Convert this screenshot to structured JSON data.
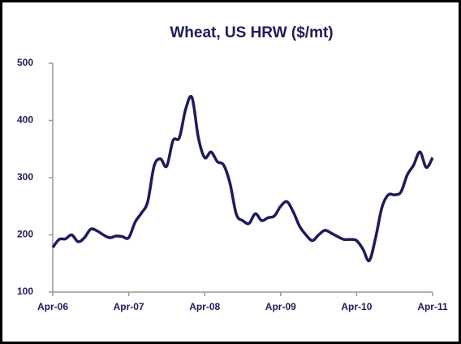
{
  "chart_data": {
    "type": "line",
    "title": "Wheat, US HRW ($/mt)",
    "x": [
      "2006-04",
      "2006-05",
      "2006-06",
      "2006-07",
      "2006-08",
      "2006-09",
      "2006-10",
      "2006-11",
      "2006-12",
      "2007-01",
      "2007-02",
      "2007-03",
      "2007-04",
      "2007-05",
      "2007-06",
      "2007-07",
      "2007-08",
      "2007-09",
      "2007-10",
      "2007-11",
      "2007-12",
      "2008-01",
      "2008-02",
      "2008-03",
      "2008-04",
      "2008-05",
      "2008-06",
      "2008-07",
      "2008-08",
      "2008-09",
      "2008-10",
      "2008-11",
      "2008-12",
      "2009-01",
      "2009-02",
      "2009-03",
      "2009-04",
      "2009-05",
      "2009-06",
      "2009-07",
      "2009-08",
      "2009-09",
      "2009-10",
      "2009-11",
      "2009-12",
      "2010-01",
      "2010-02",
      "2010-03",
      "2010-04",
      "2010-05",
      "2010-06",
      "2010-07",
      "2010-08",
      "2010-09",
      "2010-10",
      "2010-11",
      "2010-12",
      "2011-01",
      "2011-02",
      "2011-03",
      "2011-04"
    ],
    "series": [
      {
        "color": "#1c1c5c",
        "values": [
          178,
          192,
          193,
          200,
          188,
          195,
          210,
          207,
          200,
          195,
          198,
          197,
          195,
          222,
          238,
          258,
          320,
          333,
          320,
          365,
          370,
          420,
          440,
          370,
          335,
          345,
          328,
          322,
          290,
          236,
          225,
          220,
          237,
          225,
          230,
          233,
          250,
          258,
          240,
          215,
          200,
          190,
          200,
          208,
          203,
          197,
          192,
          192,
          190,
          175,
          155,
          195,
          248,
          270,
          270,
          275,
          305,
          322,
          345,
          318,
          335
        ]
      }
    ],
    "xlim": [
      "2006-04",
      "2011-04"
    ],
    "xticks": [
      {
        "value": "2006-04",
        "label": "Apr-06"
      },
      {
        "value": "2007-04",
        "label": "Apr-07"
      },
      {
        "value": "2008-04",
        "label": "Apr-08"
      },
      {
        "value": "2009-04",
        "label": "Apr-09"
      },
      {
        "value": "2010-04",
        "label": "Apr-10"
      },
      {
        "value": "2011-04",
        "label": "Apr-11"
      }
    ],
    "ylim": [
      100,
      500
    ],
    "yticks": [
      100,
      200,
      300,
      400,
      500
    ]
  }
}
